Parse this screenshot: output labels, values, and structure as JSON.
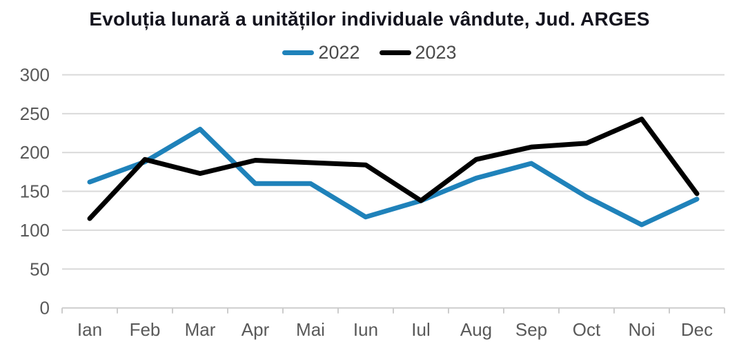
{
  "chart_data": {
    "type": "line",
    "title": "Evoluția lunară a unităților individuale vândute, Jud. ARGES",
    "categories": [
      "Ian",
      "Feb",
      "Mar",
      "Apr",
      "Mai",
      "Iun",
      "Iul",
      "Aug",
      "Sep",
      "Oct",
      "Noi",
      "Dec"
    ],
    "series": [
      {
        "name": "2022",
        "color": "#1f82ba",
        "values": [
          162,
          188,
          230,
          160,
          160,
          117,
          138,
          167,
          186,
          143,
          107,
          140
        ]
      },
      {
        "name": "2023",
        "color": "#000000",
        "values": [
          115,
          191,
          173,
          190,
          187,
          184,
          138,
          191,
          207,
          212,
          243,
          147
        ]
      }
    ],
    "xlabel": "",
    "ylabel": "",
    "ylim": [
      0,
      300
    ],
    "y_ticks": [
      0,
      50,
      100,
      150,
      200,
      250,
      300
    ],
    "grid": true,
    "legend_position": "top-center",
    "line_width": 7
  },
  "colors": {
    "background": "#ffffff",
    "title_text": "#14141e",
    "axis_label": "#595959",
    "legend_text": "#4a4a4a",
    "gridline": "#d9d9d9",
    "axis_line": "#cccccc"
  }
}
